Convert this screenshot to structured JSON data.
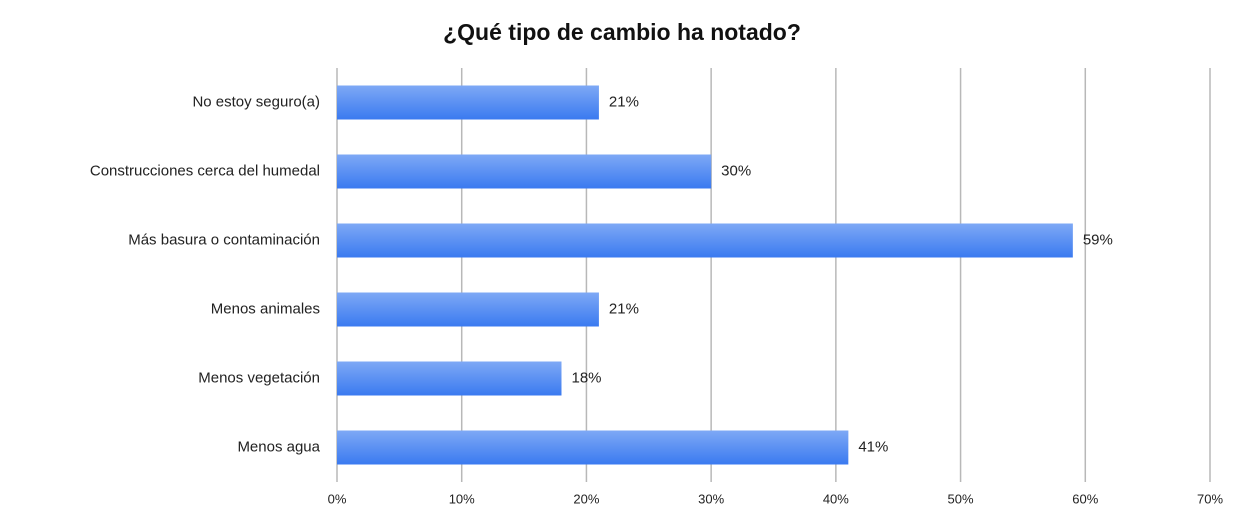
{
  "chart_data": {
    "type": "bar",
    "orientation": "horizontal",
    "title": "¿Qué tipo de cambio ha notado?",
    "categories": [
      "No estoy seguro(a)",
      "Construcciones cerca del humedal",
      "Más basura o contaminación",
      "Menos animales",
      "Menos vegetación",
      "Menos agua"
    ],
    "values": [
      21,
      30,
      59,
      21,
      18,
      41
    ],
    "value_labels": [
      "21%",
      "30%",
      "59%",
      "21%",
      "18%",
      "41%"
    ],
    "color": "#3a7af0",
    "xlim": [
      0,
      70
    ],
    "xticks": [
      {
        "value": 0,
        "label": "0%"
      },
      {
        "value": 10,
        "label": "10%"
      },
      {
        "value": 20,
        "label": "20%"
      },
      {
        "value": 30,
        "label": "30%"
      },
      {
        "value": 40,
        "label": "40%"
      },
      {
        "value": 50,
        "label": "50%"
      },
      {
        "value": 60,
        "label": "60%"
      },
      {
        "value": 70,
        "label": "70%"
      }
    ],
    "grid": true
  }
}
